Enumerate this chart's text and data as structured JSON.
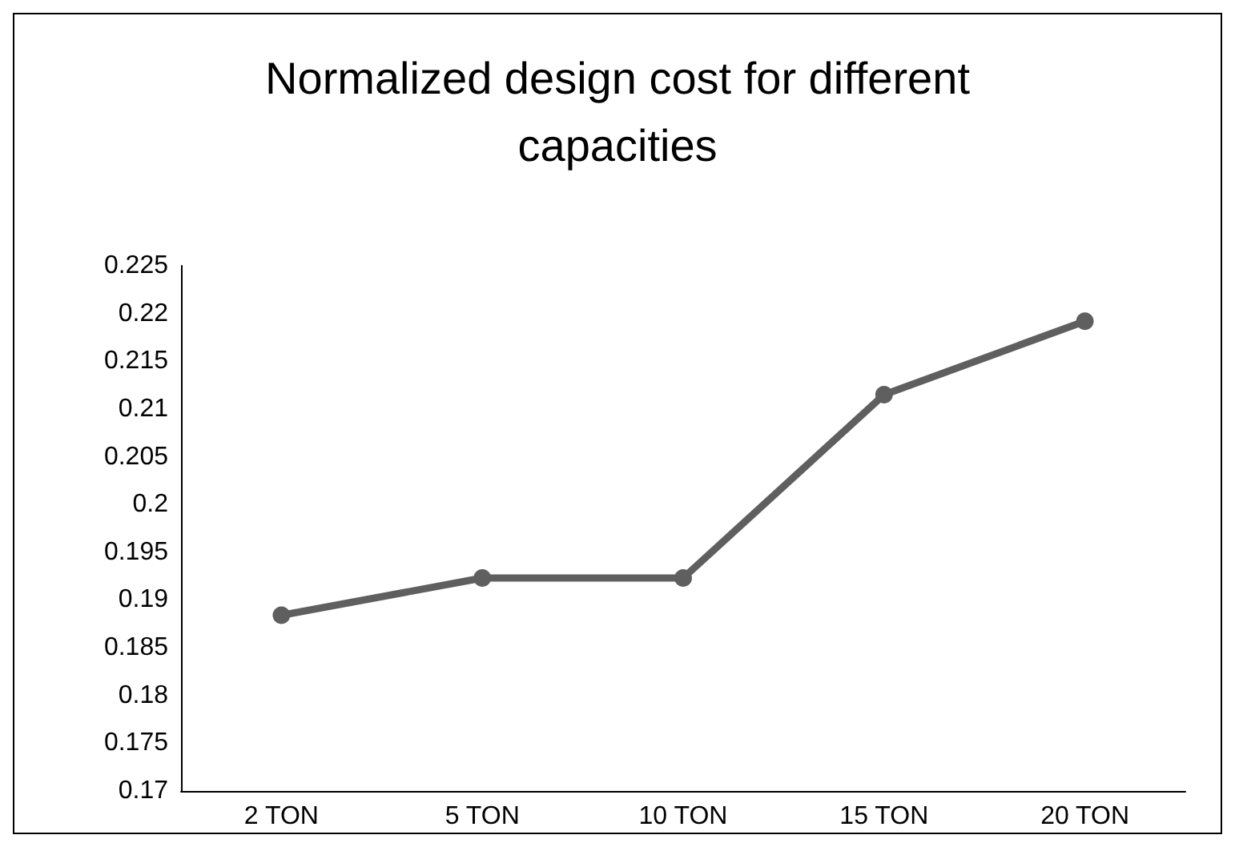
{
  "chart_data": {
    "type": "line",
    "title": "Normalized design cost for different\ncapacities",
    "categories": [
      "2 TON",
      "5 TON",
      "10 TON",
      "15 TON",
      "20 TON"
    ],
    "series": [
      {
        "color": "#5f5f5f",
        "values": [
          0.1884,
          0.1923,
          0.1923,
          0.2115,
          0.2192
        ]
      }
    ],
    "ylim": [
      0.17,
      0.225
    ],
    "yticks": [
      0.17,
      0.175,
      0.18,
      0.185,
      0.19,
      0.195,
      0.2,
      0.205,
      0.21,
      0.215,
      0.22,
      0.225
    ],
    "grid": false,
    "marker": "circle",
    "line_style": "solid"
  }
}
